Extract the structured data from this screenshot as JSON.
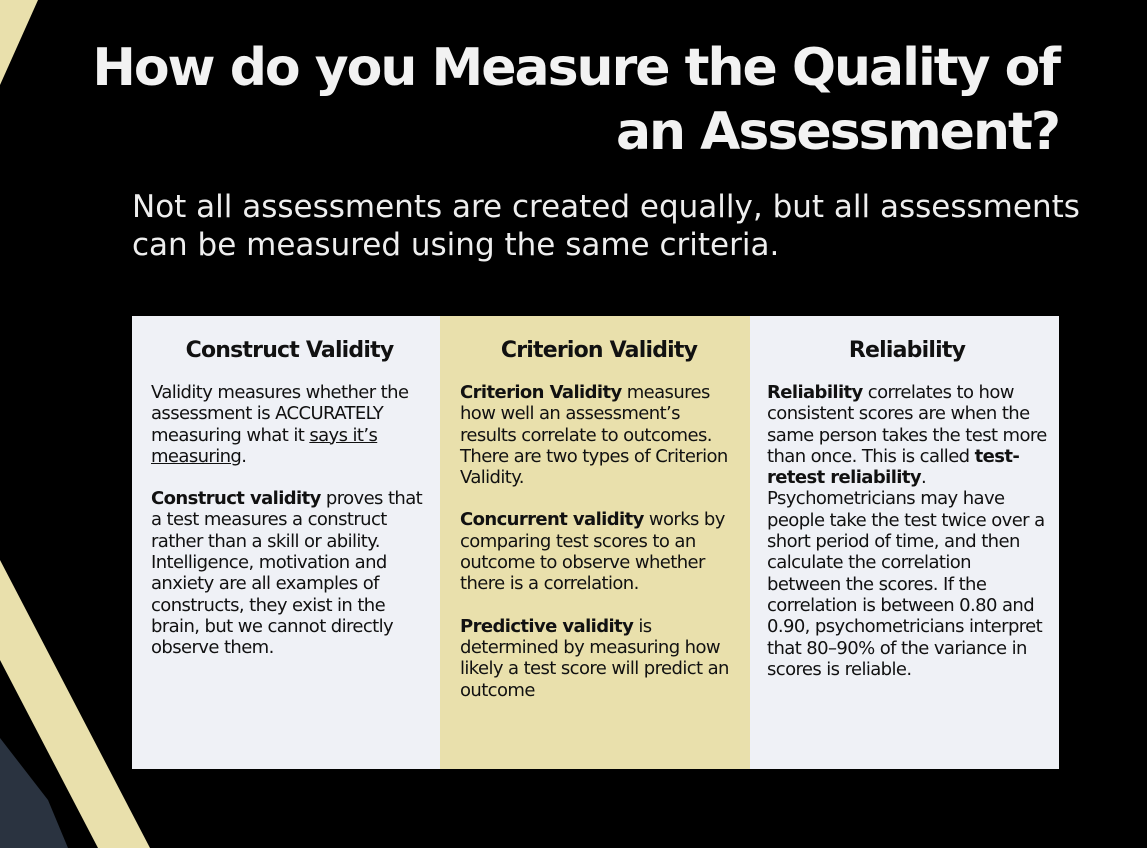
{
  "slide": {
    "title": "How do you Measure the Quality of an Assessment?",
    "subtitle": "Not all assessments are created equally, but all assessments can be measured using the same criteria."
  },
  "colors": {
    "background": "#000000",
    "accent_stripe": "#e9e0ac",
    "column_light": "#eff1f6",
    "column_highlight": "#e9e0ac"
  },
  "columns": [
    {
      "heading": "Construct Validity",
      "p1": {
        "text_a": "Validity measures whether the assessment is ACCURATELY measuring what it ",
        "underlined": "says it’s measuring",
        "text_b": "."
      },
      "p2": {
        "bold": "Construct validity",
        "text": " proves that a test measures a construct rather than a skill or ability. Intelligence, motivation and anxiety are all examples of constructs, they exist in the brain, but we cannot directly observe them."
      }
    },
    {
      "heading": "Criterion Validity",
      "p1": {
        "bold": "Criterion Validity",
        "text": " measures how well an assessment’s results correlate to outcomes. There are two types of Criterion Validity."
      },
      "p2": {
        "bold": "Concurrent validity",
        "text": " works by comparing test scores to an outcome to observe whether there is a correlation."
      },
      "p3": {
        "bold": "Predictive validity",
        "text": " is determined by measuring how likely a test score will predict an outcome"
      }
    },
    {
      "heading": "Reliability",
      "p1": {
        "bold_a": "Reliability",
        "text_a": " correlates to how consistent scores are when the same person takes the test more than once. This is called ",
        "bold_b": "test-retest reliability",
        "text_b": ". Psychometricians may have people take the test twice over a short period of time, and then calculate the correlation between the scores. If the correlation is between 0.80 and 0.90, psychometricians interpret that 80–90% of the variance in scores is reliable."
      }
    }
  ]
}
